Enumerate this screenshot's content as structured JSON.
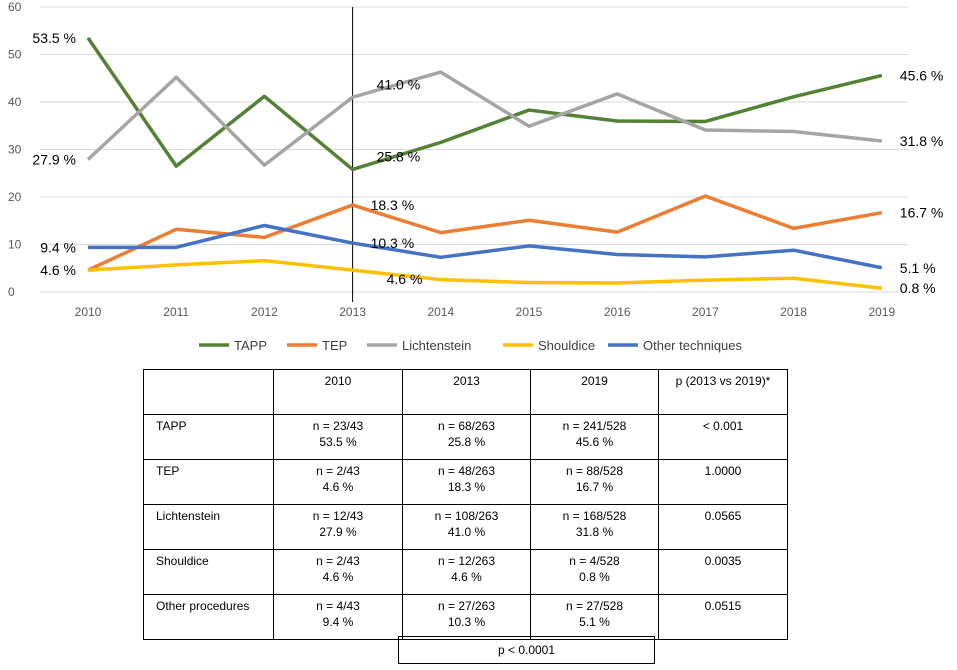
{
  "chart_data": {
    "type": "line",
    "title": "",
    "xlabel": "",
    "ylabel": "",
    "x": [
      "2010",
      "2011",
      "2012",
      "2013",
      "2014",
      "2015",
      "2016",
      "2017",
      "2018",
      "2019"
    ],
    "ylim": [
      0,
      60
    ],
    "yticks": [
      "0",
      "10",
      "20",
      "30",
      "40",
      "50",
      "60"
    ],
    "grid": true,
    "legend": "bottom",
    "reference_line_at": "2013",
    "series": [
      {
        "name": "TAPP",
        "color": "#548235",
        "values": [
          53.5,
          26.5,
          41.2,
          25.8,
          31.5,
          38.3,
          36.0,
          35.9,
          41.1,
          45.6
        ]
      },
      {
        "name": "TEP",
        "color": "#ED7D31",
        "values": [
          4.6,
          13.2,
          11.5,
          18.3,
          12.5,
          15.1,
          12.6,
          20.2,
          13.4,
          16.7
        ]
      },
      {
        "name": "Lichtenstein",
        "color": "#A5A5A5",
        "values": [
          27.9,
          45.2,
          26.7,
          41.0,
          46.3,
          34.9,
          41.7,
          34.1,
          33.8,
          31.8
        ]
      },
      {
        "name": "Shouldice",
        "color": "#FFC000",
        "values": [
          4.6,
          5.7,
          6.6,
          4.6,
          2.6,
          2.0,
          1.9,
          2.5,
          2.9,
          0.8
        ]
      },
      {
        "name": "Other techniques",
        "color": "#4472C4",
        "values": [
          9.4,
          9.4,
          14.0,
          10.3,
          7.3,
          9.7,
          7.9,
          7.4,
          8.8,
          5.1
        ]
      }
    ],
    "annotations": [
      {
        "text": "53.5 %",
        "x": "2010",
        "y": 53.5,
        "pos": "left"
      },
      {
        "text": "27.9 %",
        "x": "2010",
        "y": 27.9,
        "pos": "left"
      },
      {
        "text": "9.4 %",
        "x": "2010",
        "y": 9.4,
        "pos": "left"
      },
      {
        "text": "4.6 %",
        "x": "2010",
        "y": 4.6,
        "pos": "left"
      },
      {
        "text": "41.0 %",
        "x": "2013",
        "y": 41.0,
        "pos": "upper-right"
      },
      {
        "text": "25.8 %",
        "x": "2013",
        "y": 25.8,
        "pos": "upper-right"
      },
      {
        "text": "18.3 %",
        "x": "2013",
        "y": 18.3,
        "pos": "right"
      },
      {
        "text": "10.3 %",
        "x": "2013",
        "y": 10.3,
        "pos": "right"
      },
      {
        "text": "4.6 %",
        "x": "2013",
        "y": 4.6,
        "pos": "lower-right"
      },
      {
        "text": "45.6 %",
        "x": "2019",
        "y": 45.6,
        "pos": "right"
      },
      {
        "text": "31.8 %",
        "x": "2019",
        "y": 31.8,
        "pos": "right"
      },
      {
        "text": "16.7 %",
        "x": "2019",
        "y": 16.7,
        "pos": "right"
      },
      {
        "text": "5.1 %",
        "x": "2019",
        "y": 5.1,
        "pos": "right"
      },
      {
        "text": "0.8 %",
        "x": "2019",
        "y": 0.8,
        "pos": "right"
      }
    ]
  },
  "table": {
    "headers": [
      "",
      "2010",
      "2013",
      "2019",
      "p (2013 vs 2019)*"
    ],
    "rows": [
      {
        "label": "TAPP",
        "c2010": [
          "n = 23/43",
          "53.5 %"
        ],
        "c2013": [
          "n = 68/263",
          "25.8 %"
        ],
        "c2019": [
          "n = 241/528",
          "45.6 %"
        ],
        "p": "< 0.001"
      },
      {
        "label": "TEP",
        "c2010": [
          "n = 2/43",
          "4.6 %"
        ],
        "c2013": [
          "n = 48/263",
          "18.3 %"
        ],
        "c2019": [
          "n = 88/528",
          "16.7 %"
        ],
        "p": "1.0000"
      },
      {
        "label": "Lichtenstein",
        "c2010": [
          "n = 12/43",
          "27.9 %"
        ],
        "c2013": [
          "n = 108/263",
          "41.0 %"
        ],
        "c2019": [
          "n = 168/528",
          "31.8 %"
        ],
        "p": "0.0565"
      },
      {
        "label": "Shouldice",
        "c2010": [
          "n = 2/43",
          "4.6 %"
        ],
        "c2013": [
          "n = 12/263",
          "4.6 %"
        ],
        "c2019": [
          "n = 4/528",
          "0.8 %"
        ],
        "p": "0.0035"
      },
      {
        "label": "Other procedures",
        "c2010": [
          "n = 4/43",
          "9.4 %"
        ],
        "c2013": [
          "n = 27/263",
          "10.3 %"
        ],
        "c2019": [
          "n = 27/528",
          "5.1 %"
        ],
        "p": "0.0515"
      }
    ],
    "footer_p": "p < 0.0001"
  }
}
